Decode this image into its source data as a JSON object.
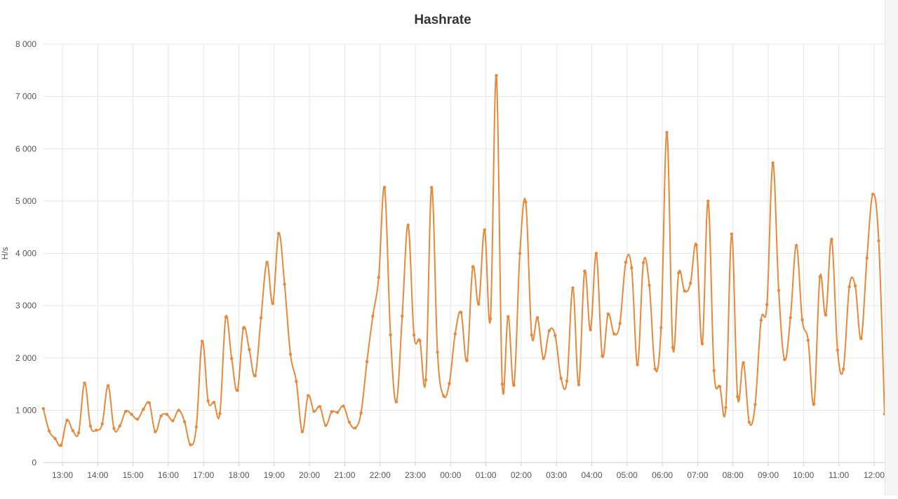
{
  "chart_data": {
    "type": "line",
    "title": "Hashrate",
    "ylabel": "H/s",
    "xlabel": "",
    "ylim": [
      0,
      8000
    ],
    "y_ticks": [
      "0",
      "1 000",
      "2 000",
      "3 000",
      "4 000",
      "5 000",
      "6 000",
      "7 000",
      "8 000"
    ],
    "x_ticks": [
      "13:00",
      "14:00",
      "15:00",
      "16:00",
      "17:00",
      "18:00",
      "19:00",
      "20:00",
      "21:00",
      "22:00",
      "23:00",
      "00:00",
      "01:00",
      "02:00",
      "03:00",
      "04:00",
      "05:00",
      "06:00",
      "07:00",
      "08:00",
      "09:00",
      "10:00",
      "11:00",
      "12:00"
    ],
    "x_start_hour": 12.46,
    "x_step_hours": 0.1667,
    "grid": true,
    "legend": "none",
    "color": "#E8893A",
    "series": [
      {
        "values": [
          1030,
          600,
          460,
          330,
          810,
          610,
          570,
          1520,
          700,
          620,
          740,
          1470,
          650,
          700,
          980,
          920,
          830,
          1020,
          1140,
          590,
          890,
          920,
          800,
          1000,
          780,
          340,
          680,
          2320,
          1180,
          1150,
          940,
          2780,
          1990,
          1380,
          2570,
          2160,
          1660,
          2770,
          3830,
          3040,
          4380,
          3410,
          2070,
          1550,
          590,
          1280,
          980,
          1070,
          710,
          970,
          960,
          1080,
          770,
          660,
          950,
          1930,
          2800,
          3540,
          5260,
          2440,
          1160,
          2800,
          4540,
          2440,
          2330,
          1580,
          5260,
          2110,
          1280,
          1510,
          2460,
          2870,
          1950,
          3740,
          3030,
          4450,
          2750,
          7400,
          1500,
          2790,
          1480,
          4000,
          4980,
          2440,
          2770,
          1990,
          2520,
          2430,
          1610,
          1560,
          3340,
          1490,
          3660,
          2540,
          4000,
          2040,
          2840,
          2460,
          2660,
          3830,
          3720,
          1870,
          3820,
          3390,
          1790,
          2580,
          6310,
          2200,
          3630,
          3280,
          3430,
          4160,
          2270,
          5000,
          1760,
          1450,
          1050,
          4370,
          1260,
          1910,
          770,
          1110,
          2720,
          3020,
          5730,
          3290,
          1970,
          2770,
          4150,
          2730,
          2340,
          1120,
          3550,
          2820,
          4270,
          2150,
          1790,
          3360,
          3380,
          2370,
          3910,
          5130,
          4240,
          930
        ]
      }
    ]
  }
}
